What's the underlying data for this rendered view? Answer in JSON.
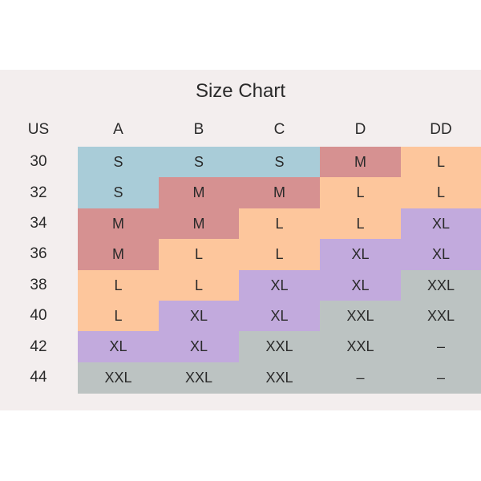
{
  "title": "Size Chart",
  "table": {
    "header": [
      "US",
      "A",
      "B",
      "C",
      "D",
      "DD"
    ],
    "rows": [
      {
        "band": "30",
        "cells": [
          "S",
          "S",
          "S",
          "M",
          "L"
        ]
      },
      {
        "band": "32",
        "cells": [
          "S",
          "M",
          "M",
          "L",
          "L"
        ]
      },
      {
        "band": "34",
        "cells": [
          "M",
          "M",
          "L",
          "L",
          "XL"
        ]
      },
      {
        "band": "36",
        "cells": [
          "M",
          "L",
          "L",
          "XL",
          "XL"
        ]
      },
      {
        "band": "38",
        "cells": [
          "L",
          "L",
          "XL",
          "XL",
          "XXL"
        ]
      },
      {
        "band": "40",
        "cells": [
          "L",
          "XL",
          "XL",
          "XXL",
          "XXL"
        ]
      },
      {
        "band": "42",
        "cells": [
          "XL",
          "XL",
          "XXL",
          "XXL",
          "–"
        ]
      },
      {
        "band": "44",
        "cells": [
          "XXL",
          "XXL",
          "XXL",
          "–",
          "–"
        ]
      }
    ]
  },
  "size_colors": {
    "S": "#a9ccd8",
    "M": "#d69191",
    "L": "#fdc69c",
    "XL": "#c2aadd",
    "XXL": "#bcc3c2",
    "–": "#bcc3c2"
  }
}
